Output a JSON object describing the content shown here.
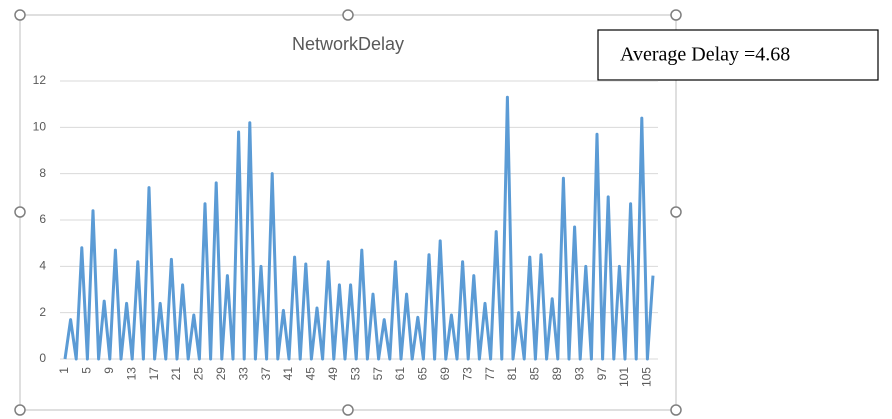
{
  "chart_data": {
    "type": "line",
    "title": "NetworkDelay",
    "annotation": "Average Delay =4.68",
    "categories": [
      1,
      null,
      null,
      null,
      5,
      null,
      null,
      null,
      9,
      null,
      null,
      null,
      13,
      null,
      null,
      null,
      17,
      null,
      null,
      null,
      21,
      null,
      null,
      null,
      25,
      null,
      null,
      null,
      29,
      null,
      null,
      null,
      33,
      null,
      null,
      null,
      37,
      null,
      null,
      null,
      41,
      null,
      null,
      null,
      45,
      null,
      null,
      null,
      49,
      null,
      null,
      null,
      53,
      null,
      null,
      null,
      57,
      null,
      null,
      null,
      61,
      null,
      null,
      null,
      65,
      null,
      null,
      null,
      69,
      null,
      null,
      null,
      73,
      null,
      null,
      null,
      77,
      null,
      null,
      null,
      81,
      null,
      null,
      null,
      85,
      null,
      null,
      null,
      89,
      null,
      null,
      null,
      93,
      null,
      null,
      null,
      97,
      null,
      null,
      null,
      101,
      null,
      null,
      null,
      105,
      null
    ],
    "series": [
      {
        "name": "NetworkDelay",
        "color": "#5b9bd5",
        "values": [
          0,
          1.7,
          0,
          4.8,
          0,
          6.4,
          0,
          2.5,
          0,
          4.7,
          0,
          2.4,
          0,
          4.2,
          0,
          7.4,
          0,
          2.4,
          0,
          4.3,
          0,
          3.2,
          0,
          1.9,
          0,
          6.7,
          0,
          7.6,
          0,
          3.6,
          0,
          9.8,
          0,
          10.2,
          0,
          4.0,
          0,
          8.0,
          0,
          2.1,
          0,
          4.4,
          0,
          4.1,
          0,
          2.2,
          0,
          4.2,
          0,
          3.2,
          0,
          3.2,
          0,
          4.7,
          0,
          2.8,
          0,
          1.7,
          0,
          4.2,
          0,
          2.8,
          0,
          1.8,
          0,
          4.5,
          0,
          5.1,
          0,
          1.9,
          0,
          4.2,
          0,
          3.6,
          0,
          2.4,
          0,
          5.5,
          0,
          11.3,
          0,
          2.0,
          0,
          4.4,
          0,
          4.5,
          0,
          2.6,
          0,
          7.8,
          0,
          5.7,
          0,
          4.0,
          0,
          9.7,
          0,
          7.0,
          0,
          4.0,
          0,
          6.7,
          0,
          10.4,
          0,
          3.6
        ]
      }
    ],
    "ylim": [
      0,
      12
    ],
    "yticks": [
      0,
      2,
      4,
      6,
      8,
      10,
      12
    ],
    "grid": true
  }
}
